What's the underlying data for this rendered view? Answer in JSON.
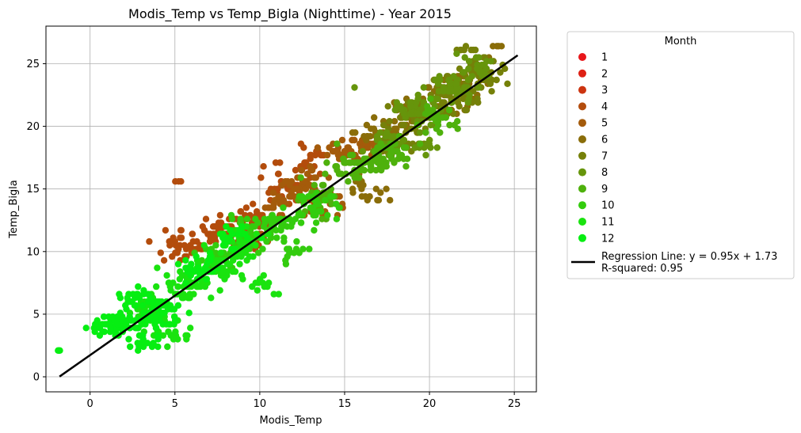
{
  "chart_data": {
    "type": "scatter",
    "title": "Modis_Temp vs Temp_Bigla (Nighttime) - Year 2015",
    "xlabel": "Modis_Temp",
    "ylabel": "Temp_Bigla",
    "xlim": [
      -2.6,
      26.3
    ],
    "ylim": [
      -1.2,
      28.0
    ],
    "xticks": [
      0,
      5,
      10,
      15,
      20,
      25
    ],
    "yticks": [
      0,
      5,
      10,
      15,
      20,
      25
    ],
    "grid": true,
    "legend": {
      "title": "Month",
      "placement": "outside-right",
      "regression_label_line1": "Regression Line: y = 0.95x + 1.73",
      "regression_label_line2": "R-squared: 0.95"
    },
    "regression": {
      "slope": 0.95,
      "intercept": 1.73,
      "r_squared": 0.95,
      "x_range": [
        -1.8,
        25.2
      ],
      "color": "#000000"
    },
    "series": [
      {
        "name": "1",
        "color": "#e8161a",
        "clusters": []
      },
      {
        "name": "2",
        "color": "#de2014",
        "clusters": []
      },
      {
        "name": "3",
        "color": "#cc3410",
        "clusters": []
      },
      {
        "name": "4",
        "color": "#b34c0c",
        "clusters": [
          [
            4.5,
            9.6,
            0.4,
            0.3,
            3
          ],
          [
            5.4,
            10.5,
            1.2,
            1.0,
            30
          ],
          [
            7.3,
            11.6,
            1.3,
            0.9,
            40
          ],
          [
            9.4,
            12.4,
            1.3,
            0.8,
            50
          ],
          [
            11.3,
            14.8,
            1.0,
            1.3,
            30
          ],
          [
            12.8,
            16.8,
            0.8,
            0.5,
            15
          ],
          [
            13.3,
            17.8,
            0.8,
            0.6,
            12
          ],
          [
            5.1,
            15.6,
            0.2,
            0.1,
            3
          ],
          [
            10.8,
            17.1,
            0.2,
            0.1,
            2
          ],
          [
            9.6,
            10.8,
            1.0,
            0.9,
            20
          ]
        ]
      },
      {
        "name": "5",
        "color": "#a45b0b",
        "clusters": [
          [
            12.6,
            15.2,
            1.3,
            1.0,
            40
          ],
          [
            14.9,
            17.9,
            1.1,
            0.7,
            30
          ],
          [
            16.0,
            18.5,
            0.9,
            0.6,
            20
          ],
          [
            13.8,
            13.6,
            1.0,
            0.8,
            20
          ],
          [
            11.2,
            13.9,
            0.9,
            0.9,
            20
          ]
        ]
      },
      {
        "name": "6",
        "color": "#8a6d09",
        "clusters": [
          [
            17.1,
            19.4,
            1.2,
            0.9,
            30
          ],
          [
            19.2,
            21.0,
            1.0,
            0.9,
            30
          ],
          [
            21.2,
            22.6,
            1.3,
            1.1,
            40
          ],
          [
            23.0,
            24.5,
            0.9,
            0.8,
            20
          ],
          [
            16.3,
            15.0,
            1.0,
            1.1,
            20
          ],
          [
            24.2,
            26.6,
            0.3,
            0.3,
            4
          ]
        ]
      },
      {
        "name": "7",
        "color": "#758009",
        "clusters": [
          [
            19.4,
            20.8,
            1.4,
            1.1,
            50
          ],
          [
            21.6,
            22.8,
            1.4,
            1.1,
            60
          ],
          [
            23.2,
            24.4,
            1.1,
            1.0,
            40
          ],
          [
            18.2,
            19.0,
            1.1,
            1.0,
            30
          ],
          [
            22.1,
            26.2,
            0.5,
            0.2,
            8
          ]
        ]
      },
      {
        "name": "8",
        "color": "#66950b",
        "clusters": [
          [
            19.3,
            21.4,
            1.2,
            1.0,
            40
          ],
          [
            21.4,
            23.0,
            1.2,
            1.0,
            40
          ],
          [
            17.6,
            18.6,
            1.1,
            1.0,
            30
          ],
          [
            15.6,
            23.1,
            0.1,
            0.1,
            1
          ],
          [
            22.6,
            25.0,
            0.9,
            0.7,
            20
          ],
          [
            19.8,
            18.4,
            0.6,
            0.6,
            10
          ]
        ]
      },
      {
        "name": "9",
        "color": "#4eb10c",
        "clusters": [
          [
            15.6,
            16.8,
            1.4,
            1.0,
            50
          ],
          [
            17.7,
            17.8,
            1.2,
            1.0,
            40
          ],
          [
            13.4,
            14.1,
            1.1,
            1.0,
            30
          ],
          [
            20.4,
            20.5,
            1.0,
            1.0,
            30
          ]
        ]
      },
      {
        "name": "10",
        "color": "#33cc0e",
        "clusters": [
          [
            9.1,
            11.4,
            1.3,
            1.0,
            40
          ],
          [
            11.3,
            12.3,
            1.2,
            1.0,
            40
          ],
          [
            13.4,
            13.6,
            1.0,
            0.9,
            30
          ],
          [
            7.6,
            9.6,
            1.0,
            0.9,
            25
          ],
          [
            11.9,
            9.9,
            0.8,
            0.9,
            15
          ]
        ]
      },
      {
        "name": "11",
        "color": "#1ae30f",
        "clusters": [
          [
            3.6,
            5.4,
            1.2,
            1.0,
            50
          ],
          [
            5.6,
            7.4,
            1.3,
            1.0,
            50
          ],
          [
            7.6,
            8.8,
            1.3,
            1.0,
            50
          ],
          [
            9.0,
            10.4,
            1.0,
            1.0,
            40
          ],
          [
            4.8,
            3.6,
            1.0,
            0.9,
            25
          ],
          [
            10.2,
            7.2,
            0.7,
            0.8,
            12
          ]
        ]
      },
      {
        "name": "12",
        "color": "#06ee12",
        "clusters": [
          [
            1.2,
            3.9,
            1.0,
            0.7,
            40
          ],
          [
            2.8,
            4.4,
            1.1,
            0.8,
            40
          ],
          [
            4.2,
            5.2,
            1.0,
            0.9,
            40
          ],
          [
            2.6,
            6.5,
            0.9,
            0.6,
            20
          ],
          [
            6.3,
            8.5,
            1.0,
            0.8,
            30
          ],
          [
            -1.8,
            2.1,
            0.1,
            0.05,
            3
          ],
          [
            3.3,
            2.6,
            0.7,
            0.6,
            15
          ],
          [
            8.2,
            11.0,
            0.9,
            0.8,
            25
          ]
        ]
      }
    ]
  }
}
